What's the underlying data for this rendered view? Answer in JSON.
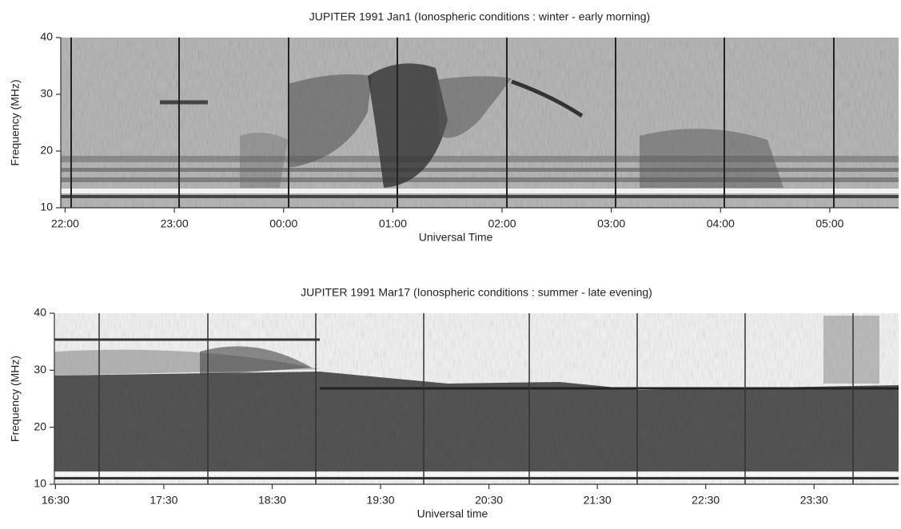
{
  "chart_data": [
    {
      "type": "spectrogram",
      "title": "JUPITER 1991 Jan1  (Ionospheric conditions :  winter - early morning)",
      "xlabel": "Universal Time",
      "ylabel": "Frequency (MHz)",
      "xlim": [
        21.96,
        29.63
      ],
      "ylim": [
        10,
        40
      ],
      "yticks": [
        10,
        20,
        30,
        40
      ],
      "xticks": [
        {
          "value": 22,
          "label": "22:00"
        },
        {
          "value": 23,
          "label": "23:00"
        },
        {
          "value": 24,
          "label": "00:00"
        },
        {
          "value": 25,
          "label": "01:00"
        },
        {
          "value": 26,
          "label": "02:00"
        },
        {
          "value": 27,
          "label": "03:00"
        },
        {
          "value": 28,
          "label": "04:00"
        },
        {
          "value": 29,
          "label": "05:00"
        }
      ]
    },
    {
      "type": "spectrogram",
      "title": "JUPITER 1991 Mar17  (Ionospheric conditions : summer - late evening)",
      "xlabel": "Universal time",
      "ylabel": "Frequency (MHz)",
      "xlim": [
        16.49,
        24.28
      ],
      "ylim": [
        10,
        40
      ],
      "yticks": [
        10,
        20,
        30,
        40
      ],
      "xticks": [
        {
          "value": 16.5,
          "label": "16:30"
        },
        {
          "value": 17.5,
          "label": "17:30"
        },
        {
          "value": 18.5,
          "label": "18:30"
        },
        {
          "value": 19.5,
          "label": "19:30"
        },
        {
          "value": 20.5,
          "label": "20:30"
        },
        {
          "value": 21.5,
          "label": "21:30"
        },
        {
          "value": 22.5,
          "label": "22:30"
        },
        {
          "value": 23.5,
          "label": "23:30"
        }
      ]
    }
  ]
}
